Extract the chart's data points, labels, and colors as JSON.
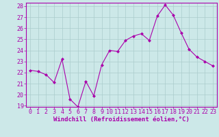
{
  "x": [
    0,
    1,
    2,
    3,
    4,
    5,
    6,
    7,
    8,
    9,
    10,
    11,
    12,
    13,
    14,
    15,
    16,
    17,
    18,
    19,
    20,
    21,
    22,
    23
  ],
  "y": [
    22.2,
    22.1,
    21.8,
    21.1,
    23.2,
    19.6,
    18.9,
    21.2,
    19.9,
    22.7,
    24.0,
    23.9,
    24.9,
    25.3,
    25.5,
    24.9,
    27.1,
    28.1,
    27.2,
    25.6,
    24.1,
    23.4,
    23.0,
    22.6
  ],
  "line_color": "#aa00aa",
  "marker_color": "#aa00aa",
  "bg_color": "#cce8e8",
  "grid_color": "#aacccc",
  "axis_color": "#aa00aa",
  "xlabel": "Windchill (Refroidissement éolien,°C)",
  "ylim": [
    19,
    28
  ],
  "xlim": [
    -0.5,
    23.5
  ],
  "yticks": [
    19,
    20,
    21,
    22,
    23,
    24,
    25,
    26,
    27,
    28
  ],
  "xticks": [
    0,
    1,
    2,
    3,
    4,
    5,
    6,
    7,
    8,
    9,
    10,
    11,
    12,
    13,
    14,
    15,
    16,
    17,
    18,
    19,
    20,
    21,
    22,
    23
  ],
  "label_fontsize": 6.5,
  "tick_fontsize": 6.0
}
